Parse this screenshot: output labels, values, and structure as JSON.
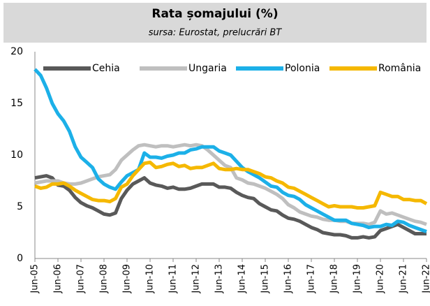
{
  "chart_data": {
    "type": "line",
    "title": "Rata șomajului (%)",
    "subtitle": "sursa: Eurostat, prelucrări BT",
    "categories": [
      "Jun-05",
      null,
      null,
      null,
      "Jun-06",
      null,
      null,
      null,
      "Jun-07",
      null,
      null,
      null,
      "Jun-08",
      null,
      null,
      null,
      "Jun-09",
      null,
      null,
      null,
      "Jun-10",
      null,
      null,
      null,
      "Jun-11",
      null,
      null,
      null,
      "Jun-12",
      null,
      null,
      null,
      "Jun-13",
      null,
      null,
      null,
      "Jun-14",
      null,
      null,
      null,
      "Jun-15",
      null,
      null,
      null,
      "Jun-16",
      null,
      null,
      null,
      "Jun-17",
      null,
      null,
      null,
      "Jun-18",
      null,
      null,
      null,
      "Jun-19",
      null,
      null,
      null,
      "Jun-20",
      null,
      null,
      null,
      "Jun-21",
      null,
      null,
      null,
      "Jun-22"
    ],
    "series": [
      {
        "name": "Cehia",
        "color": "#595959",
        "values": [
          7.8,
          7.9,
          8.0,
          7.8,
          7.1,
          7.0,
          6.6,
          5.9,
          5.4,
          5.1,
          4.9,
          4.6,
          4.3,
          4.2,
          4.4,
          5.8,
          6.6,
          7.2,
          7.5,
          7.8,
          7.3,
          7.1,
          7.0,
          6.8,
          6.9,
          6.7,
          6.7,
          6.8,
          7.0,
          7.2,
          7.2,
          7.2,
          6.9,
          6.9,
          6.8,
          6.4,
          6.1,
          5.9,
          5.8,
          5.3,
          5.0,
          4.7,
          4.6,
          4.2,
          3.9,
          3.8,
          3.6,
          3.3,
          3.0,
          2.8,
          2.5,
          2.4,
          2.3,
          2.3,
          2.2,
          2.0,
          2.0,
          2.1,
          2.0,
          2.1,
          2.7,
          2.9,
          3.1,
          3.3,
          3.0,
          2.7,
          2.4,
          2.4,
          2.4
        ]
      },
      {
        "name": "Ungaria",
        "color": "#bfbfbf",
        "values": [
          7.3,
          7.4,
          7.5,
          7.5,
          7.5,
          7.3,
          7.2,
          7.2,
          7.3,
          7.5,
          7.7,
          7.9,
          8.0,
          8.1,
          8.6,
          9.5,
          10.0,
          10.5,
          10.9,
          11.0,
          10.9,
          10.8,
          10.9,
          10.9,
          10.8,
          10.9,
          11.0,
          10.9,
          11.0,
          10.9,
          10.5,
          10.0,
          9.5,
          9.0,
          8.8,
          7.8,
          7.6,
          7.3,
          7.2,
          7.0,
          6.8,
          6.5,
          6.2,
          5.8,
          5.2,
          4.9,
          4.5,
          4.3,
          4.1,
          4.0,
          3.8,
          3.7,
          3.7,
          3.6,
          3.6,
          3.4,
          3.4,
          3.4,
          3.3,
          3.5,
          4.6,
          4.3,
          4.4,
          4.2,
          4.0,
          3.8,
          3.6,
          3.5,
          3.3
        ]
      },
      {
        "name": "Polonia",
        "color": "#1cb0e8",
        "values": [
          18.3,
          17.7,
          16.5,
          15.0,
          14.0,
          13.3,
          12.3,
          10.8,
          9.8,
          9.3,
          8.8,
          7.7,
          7.2,
          6.9,
          6.7,
          7.4,
          8.0,
          8.3,
          8.6,
          10.2,
          9.8,
          9.8,
          9.7,
          9.9,
          10.0,
          10.2,
          10.2,
          10.5,
          10.6,
          10.8,
          10.8,
          10.8,
          10.4,
          10.2,
          10.0,
          9.4,
          8.8,
          8.4,
          8.1,
          7.8,
          7.4,
          7.0,
          6.9,
          6.4,
          6.1,
          6.0,
          5.7,
          5.2,
          4.9,
          4.6,
          4.3,
          4.0,
          3.7,
          3.7,
          3.7,
          3.4,
          3.3,
          3.2,
          3.0,
          3.1,
          3.1,
          3.3,
          3.2,
          3.6,
          3.5,
          3.2,
          3.0,
          2.8,
          2.6
        ]
      },
      {
        "name": "România",
        "color": "#f5b800",
        "values": [
          7.0,
          6.8,
          6.9,
          7.2,
          7.2,
          7.3,
          7.0,
          6.6,
          6.3,
          6.0,
          5.7,
          5.6,
          5.6,
          5.5,
          5.8,
          6.9,
          7.2,
          8.0,
          8.6,
          9.2,
          9.3,
          8.8,
          8.9,
          9.1,
          9.2,
          8.9,
          9.0,
          8.7,
          8.8,
          8.8,
          9.0,
          9.2,
          8.7,
          8.6,
          8.6,
          8.7,
          8.6,
          8.6,
          8.4,
          8.2,
          7.9,
          7.8,
          7.5,
          7.3,
          6.9,
          6.8,
          6.5,
          6.2,
          5.9,
          5.6,
          5.3,
          5.0,
          5.1,
          5.0,
          5.0,
          5.0,
          4.9,
          4.9,
          5.0,
          5.1,
          6.4,
          6.2,
          6.0,
          6.0,
          5.7,
          5.7,
          5.6,
          5.6,
          5.3
        ]
      }
    ],
    "ylim": [
      0,
      20
    ],
    "yticks": [
      0,
      5,
      10,
      15,
      20
    ],
    "grid": false,
    "legend": "top"
  }
}
